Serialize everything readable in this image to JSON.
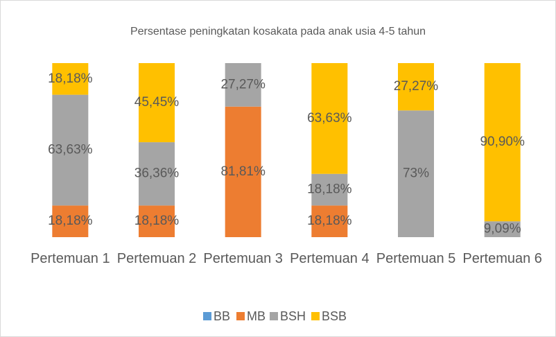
{
  "chart_data": {
    "type": "bar",
    "stacked": "percent",
    "title": "Persentase peningkatan kosakata pada anak usia 4-5 tahun",
    "categories": [
      "Pertemuan 1",
      "Pertemuan 2",
      "Pertemuan 3",
      "Pertemuan 4",
      "Pertemuan 5",
      "Pertemuan 6"
    ],
    "series": [
      {
        "name": "BB",
        "color": "#5b9bd5",
        "values": [
          0,
          0,
          0,
          0,
          0,
          0
        ]
      },
      {
        "name": "MB",
        "color": "#ed7d31",
        "values": [
          18.18,
          18.18,
          81.81,
          18.18,
          null,
          null
        ],
        "value_labels": [
          "18,18%",
          "18,18%",
          "81,81%",
          "18,18%",
          null,
          null
        ]
      },
      {
        "name": "BSH",
        "color": "#a5a5a5",
        "values": [
          63.63,
          36.36,
          27.27,
          18.18,
          73,
          9.09
        ],
        "value_labels": [
          "63,63%",
          "36,36%",
          "27,27%",
          "18,18%",
          "73%",
          "9,09%"
        ]
      },
      {
        "name": "BSB",
        "color": "#ffc000",
        "values": [
          18.18,
          45.45,
          null,
          63.63,
          27.27,
          90.9
        ],
        "value_labels": [
          "18,18%",
          "45,45%",
          null,
          "63,63%",
          "27,27%",
          "90,90%"
        ]
      }
    ],
    "legend": "bottom"
  }
}
